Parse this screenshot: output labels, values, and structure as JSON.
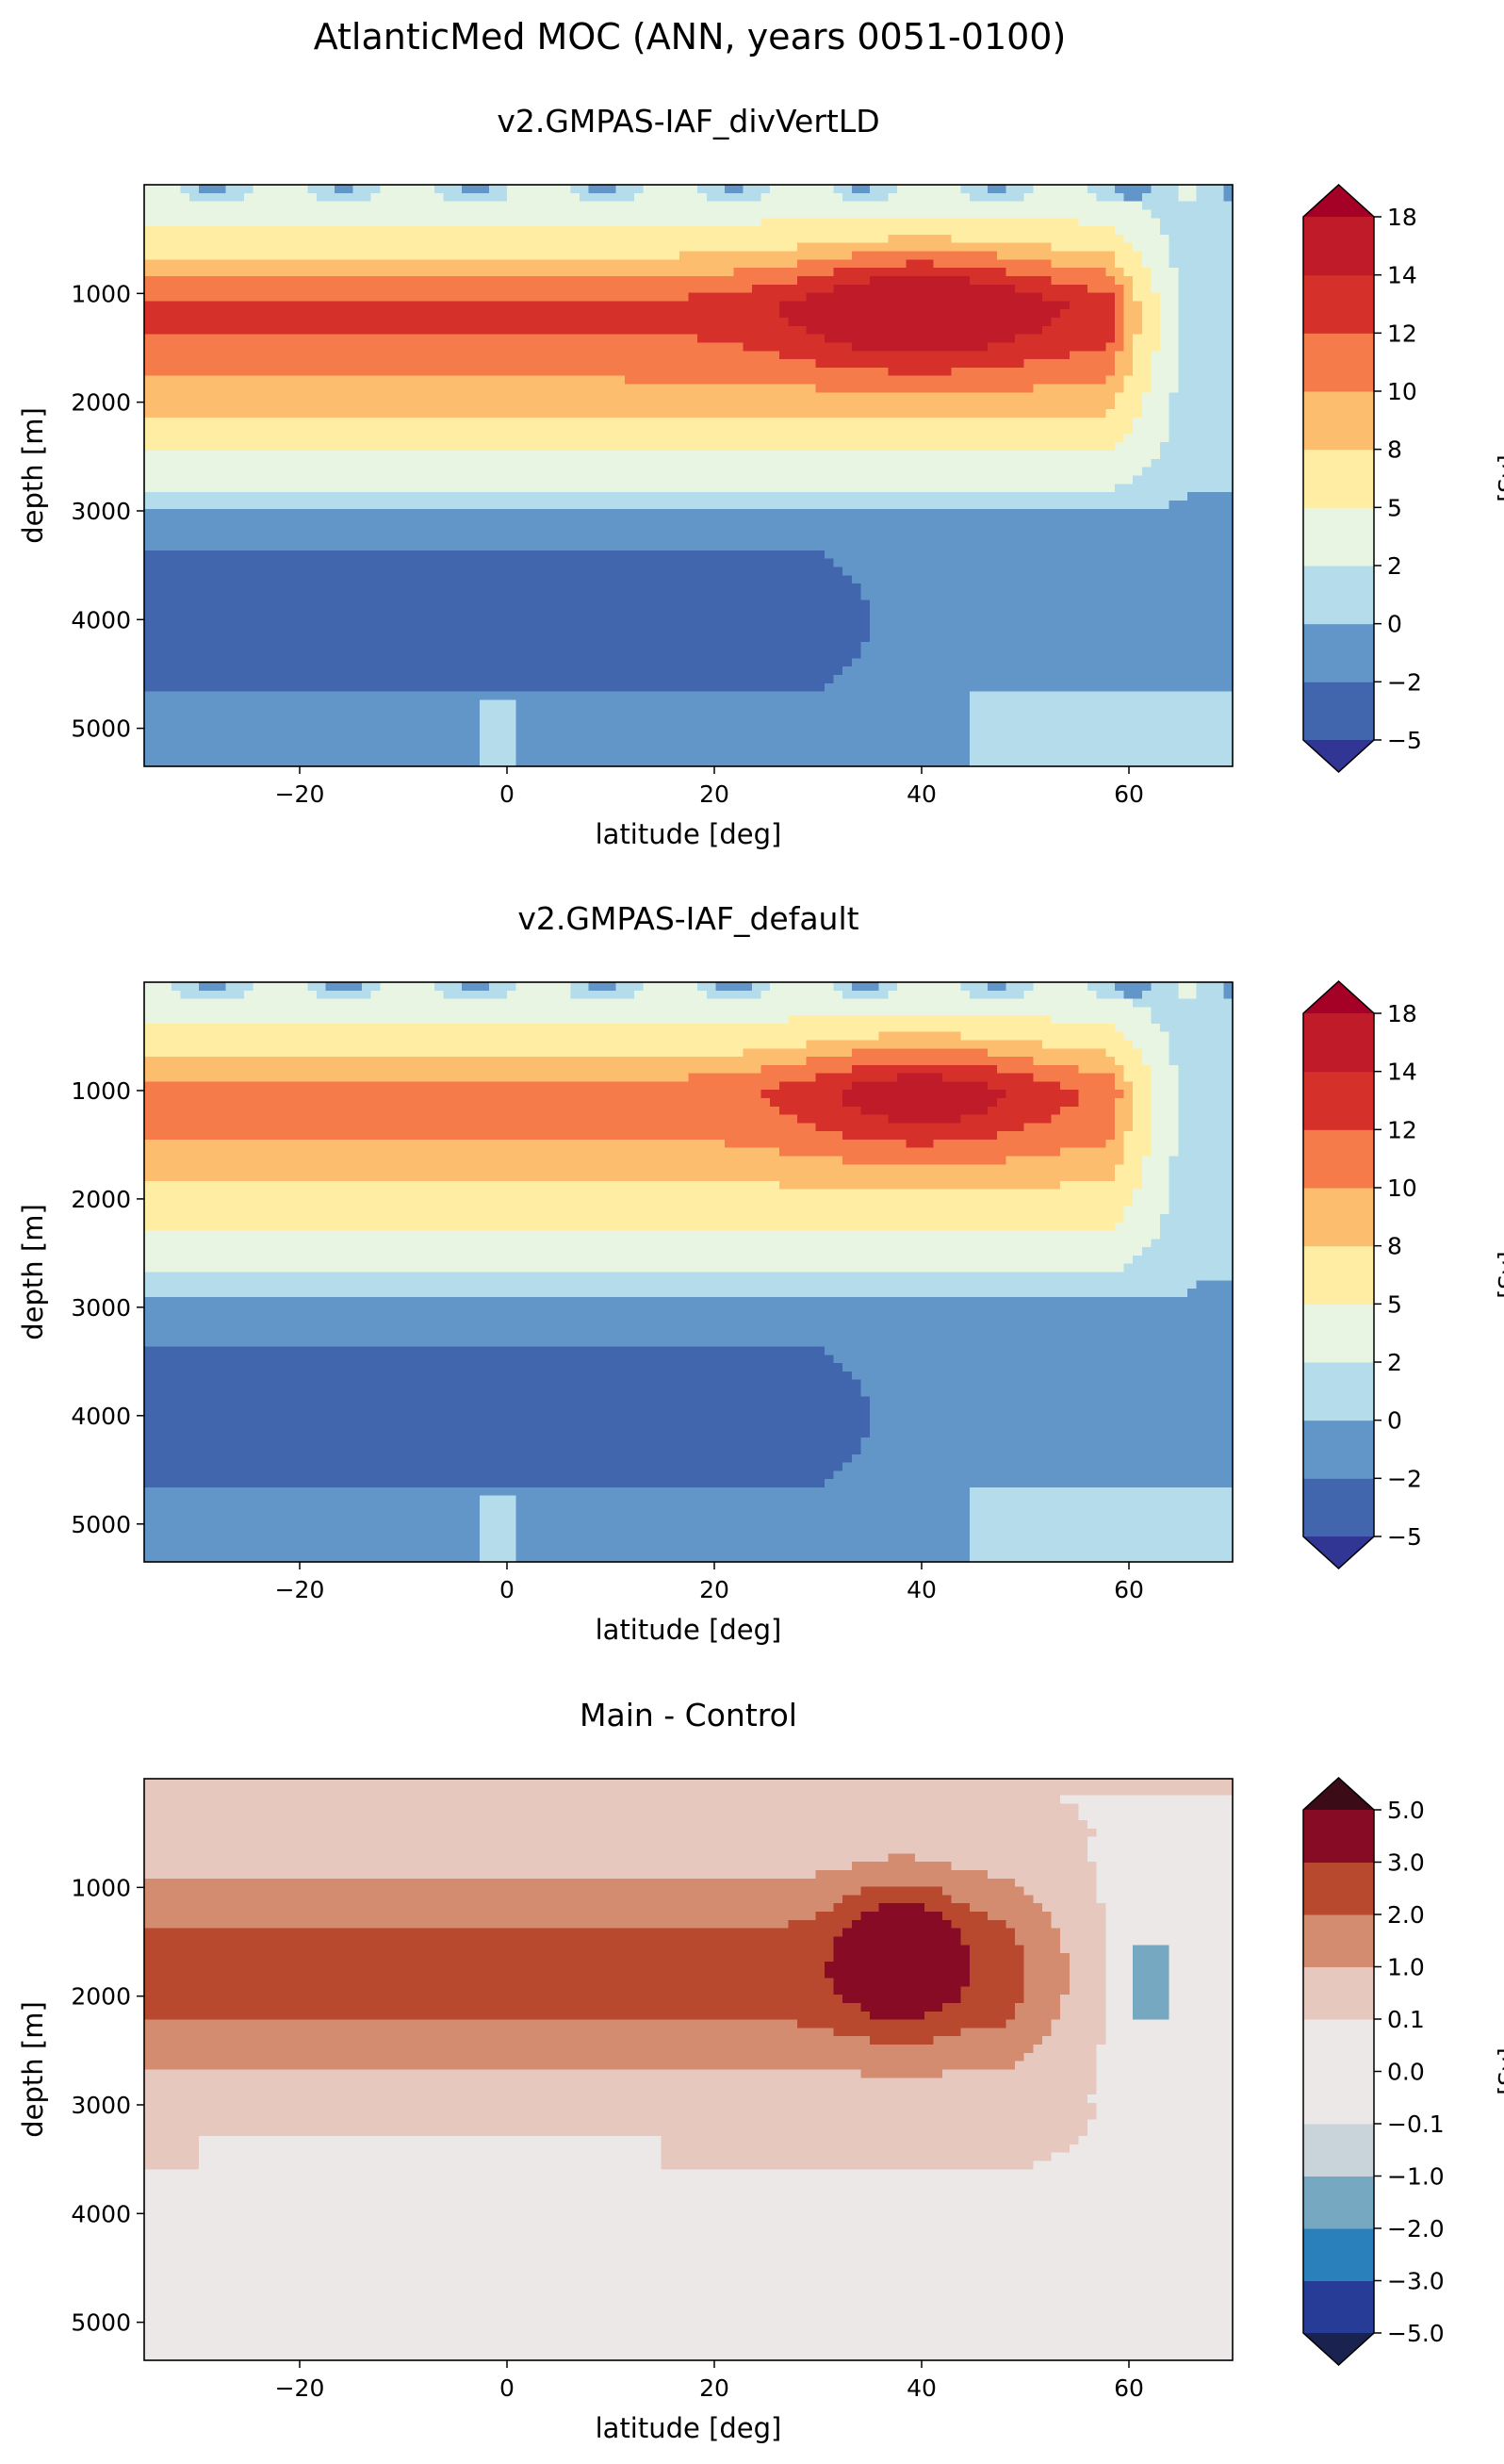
{
  "chart_data": {
    "type": "contourf",
    "title": "AtlanticMed MOC (ANN, years 0051-0100)",
    "panels": [
      {
        "title": "v2.GMPAS-IAF_divVertLD",
        "xlabel": "latitude [deg]",
        "ylabel": "depth [m]",
        "xlim": [
          -35,
          70
        ],
        "ylim": [
          5350,
          0
        ],
        "xticks": [
          -20,
          0,
          20,
          40,
          60
        ],
        "xtick_labels": [
          "−20",
          "0",
          "20",
          "40",
          "60"
        ],
        "yticks": [
          1000,
          2000,
          3000,
          4000,
          5000
        ],
        "ytick_labels": [
          "1000",
          "2000",
          "3000",
          "4000",
          "5000"
        ],
        "colorbar": {
          "label": "[Sv]",
          "levels": [
            -5,
            -2,
            0,
            2,
            5,
            8,
            10,
            12,
            14,
            18
          ],
          "tick_labels": [
            "−5",
            "−2",
            "0",
            "2",
            "5",
            "8",
            "10",
            "12",
            "14",
            "18"
          ],
          "colors": [
            "#4166ad",
            "#6296c8",
            "#b4dcea",
            "#e9f5e3",
            "#feeda2",
            "#fdbd6e",
            "#f57b4a",
            "#d6302a",
            "#c01b29"
          ],
          "under_color": "#313695",
          "over_color": "#a50026",
          "extend": "both"
        },
        "field": {
          "max_core": {
            "lat": 40,
            "depth": 1100,
            "value": 16
          },
          "max_band": 13,
          "mid_band": 12.5,
          "deep_min_cell": {
            "lat_start": -35,
            "lat_end": 30,
            "depth": 4000,
            "value": -3
          },
          "upper_depth": 1100,
          "deep_cell_top": 3500,
          "deep_cell_bottom": 4500
        }
      },
      {
        "title": "v2.GMPAS-IAF_default",
        "xlabel": "latitude [deg]",
        "ylabel": "depth [m]",
        "xlim": [
          -35,
          70
        ],
        "ylim": [
          5350,
          0
        ],
        "xticks": [
          -20,
          0,
          20,
          40,
          60
        ],
        "xtick_labels": [
          "−20",
          "0",
          "20",
          "40",
          "60"
        ],
        "yticks": [
          1000,
          2000,
          3000,
          4000,
          5000
        ],
        "ytick_labels": [
          "1000",
          "2000",
          "3000",
          "4000",
          "5000"
        ],
        "colorbar": {
          "label": "[Sv]",
          "levels": [
            -5,
            -2,
            0,
            2,
            5,
            8,
            10,
            12,
            14,
            18
          ],
          "tick_labels": [
            "−5",
            "−2",
            "0",
            "2",
            "5",
            "8",
            "10",
            "12",
            "14",
            "18"
          ],
          "colors": [
            "#4166ad",
            "#6296c8",
            "#b4dcea",
            "#e9f5e3",
            "#feeda2",
            "#fdbd6e",
            "#f57b4a",
            "#d6302a",
            "#c01b29"
          ],
          "under_color": "#313695",
          "over_color": "#a50026",
          "extend": "both"
        },
        "field": {
          "max_core": {
            "lat": 40,
            "depth": 1000,
            "value": 14
          },
          "max_band": 11,
          "mid_band": 11,
          "deep_min_cell": {
            "lat_start": -35,
            "lat_end": 30,
            "depth": 4000,
            "value": -3
          },
          "upper_depth": 1000,
          "deep_cell_top": 3400,
          "deep_cell_bottom": 4500
        }
      },
      {
        "title": "Main - Control",
        "xlabel": "latitude [deg]",
        "ylabel": "depth [m]",
        "xlim": [
          -35,
          70
        ],
        "ylim": [
          5350,
          0
        ],
        "xticks": [
          -20,
          0,
          20,
          40,
          60
        ],
        "xtick_labels": [
          "−20",
          "0",
          "20",
          "40",
          "60"
        ],
        "yticks": [
          1000,
          2000,
          3000,
          4000,
          5000
        ],
        "ytick_labels": [
          "1000",
          "2000",
          "3000",
          "4000",
          "5000"
        ],
        "colorbar": {
          "label": "[Sv]",
          "levels": [
            -5.0,
            -3.0,
            -2.0,
            -1.0,
            -0.1,
            0.0,
            0.1,
            1.0,
            2.0,
            3.0,
            5.0
          ],
          "tick_labels": [
            "−5.0",
            "−3.0",
            "−2.0",
            "−1.0",
            "−0.1",
            "0.0",
            "0.1",
            "1.0",
            "2.0",
            "3.0",
            "5.0"
          ],
          "colors": [
            "#273c96",
            "#2980ba",
            "#76a9c1",
            "#c8d3da",
            "#ece8e8",
            "#ece8e8",
            "#e7c8bf",
            "#d38c70",
            "#b8482e",
            "#870b25"
          ],
          "under_color": "#1a2250",
          "over_color": "#3b0b18",
          "extend": "both"
        },
        "field": {
          "core": {
            "lat": 38,
            "depth": 1600,
            "value": 4
          },
          "band_value": 2.5,
          "outer_value": 1.5,
          "band_top": 1000,
          "band_bottom": 2600,
          "outer_top": 500,
          "outer_bottom": 3000
        }
      }
    ]
  }
}
